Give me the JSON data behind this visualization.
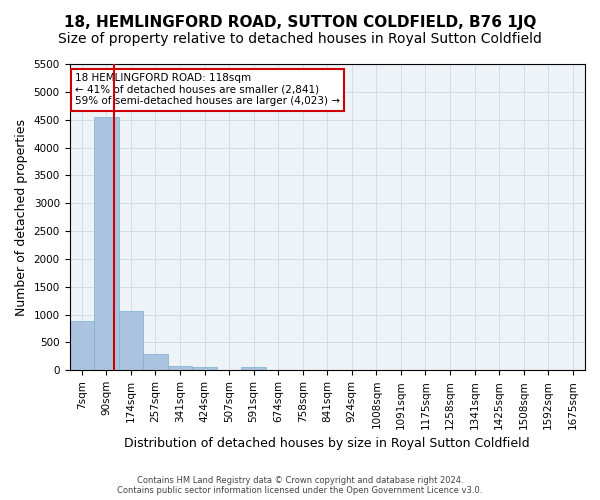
{
  "title": "18, HEMLINGFORD ROAD, SUTTON COLDFIELD, B76 1JQ",
  "subtitle": "Size of property relative to detached houses in Royal Sutton Coldfield",
  "xlabel": "Distribution of detached houses by size in Royal Sutton Coldfield",
  "ylabel": "Number of detached properties",
  "footer1": "Contains HM Land Registry data © Crown copyright and database right 2024.",
  "footer2": "Contains public sector information licensed under the Open Government Licence v3.0.",
  "bin_labels": [
    "7sqm",
    "90sqm",
    "174sqm",
    "257sqm",
    "341sqm",
    "424sqm",
    "507sqm",
    "591sqm",
    "674sqm",
    "758sqm",
    "841sqm",
    "924sqm",
    "1008sqm",
    "1091sqm",
    "1175sqm",
    "1258sqm",
    "1341sqm",
    "1425sqm",
    "1508sqm",
    "1592sqm",
    "1675sqm"
  ],
  "bar_heights": [
    880,
    4550,
    1060,
    290,
    75,
    65,
    0,
    65,
    0,
    0,
    0,
    0,
    0,
    0,
    0,
    0,
    0,
    0,
    0,
    0,
    0
  ],
  "bar_color": "#aac4e0",
  "bar_edge_color": "#7aafd0",
  "grid_color": "#d0dce8",
  "background_color": "#eef3f8",
  "vline_x": 1.31,
  "vline_color": "#cc0000",
  "annotation_text": "18 HEMLINGFORD ROAD: 118sqm\n← 41% of detached houses are smaller (2,841)\n59% of semi-detached houses are larger (4,023) →",
  "annotation_box_color": "#ffffff",
  "annotation_border_color": "#cc0000",
  "ylim": [
    0,
    5500
  ],
  "yticks": [
    0,
    500,
    1000,
    1500,
    2000,
    2500,
    3000,
    3500,
    4000,
    4500,
    5000,
    5500
  ],
  "title_fontsize": 11,
  "subtitle_fontsize": 10,
  "tick_fontsize": 7.5,
  "ylabel_fontsize": 9,
  "xlabel_fontsize": 9
}
